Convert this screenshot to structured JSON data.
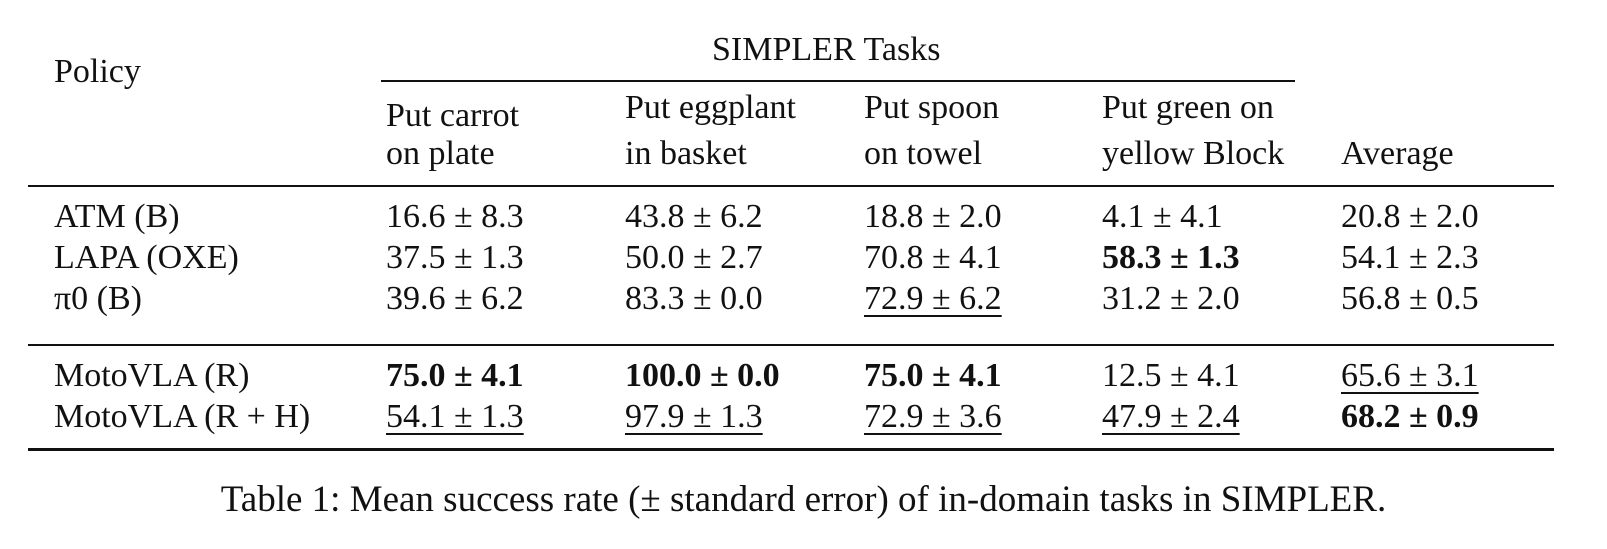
{
  "table": {
    "policy_header": "Policy",
    "group_header": "SIMPLER Tasks",
    "task_headers": [
      {
        "line1": "Put carrot",
        "line2": "on plate"
      },
      {
        "line1": "Put eggplant",
        "line2": "in basket"
      },
      {
        "line1": "Put spoon",
        "line2": "on towel"
      },
      {
        "line1": "Put green on",
        "line2": "yellow Block"
      }
    ],
    "average_header": "Average",
    "group1": [
      {
        "policy": "ATM (B)",
        "values": [
          "16.6 ± 8.3",
          "43.8 ± 6.2",
          "18.8 ± 2.0",
          "4.1 ± 4.1",
          "20.8 ± 2.0"
        ],
        "bold": [
          false,
          false,
          false,
          false,
          false
        ],
        "underline": [
          false,
          false,
          false,
          false,
          false
        ]
      },
      {
        "policy": "LAPA (OXE)",
        "values": [
          "37.5 ± 1.3",
          "50.0 ± 2.7",
          "70.8 ± 4.1",
          "58.3 ± 1.3",
          "54.1 ± 2.3"
        ],
        "bold": [
          false,
          false,
          false,
          true,
          false
        ],
        "underline": [
          false,
          false,
          false,
          false,
          false
        ]
      },
      {
        "policy": "π0 (B)",
        "values": [
          "39.6 ± 6.2",
          "83.3 ± 0.0",
          "72.9 ± 6.2",
          "31.2 ± 2.0",
          "56.8 ± 0.5"
        ],
        "bold": [
          false,
          false,
          false,
          false,
          false
        ],
        "underline": [
          false,
          false,
          true,
          false,
          false
        ]
      }
    ],
    "group2": [
      {
        "policy": "MotoVLA (R)",
        "values": [
          "75.0 ± 4.1",
          "100.0 ± 0.0",
          "75.0 ± 4.1",
          "12.5 ± 4.1",
          "65.6 ± 3.1"
        ],
        "bold": [
          true,
          true,
          true,
          false,
          false
        ],
        "underline": [
          false,
          false,
          false,
          false,
          true
        ]
      },
      {
        "policy": "MotoVLA (R + H)",
        "values": [
          "54.1 ± 1.3",
          "97.9 ± 1.3",
          "72.9 ± 3.6",
          "47.9 ± 2.4",
          "68.2 ± 0.9"
        ],
        "bold": [
          false,
          false,
          false,
          false,
          true
        ],
        "underline": [
          true,
          true,
          true,
          true,
          false
        ]
      }
    ]
  },
  "caption": "Table 1: Mean success rate (± standard error) of in-domain tasks in SIMPLER."
}
